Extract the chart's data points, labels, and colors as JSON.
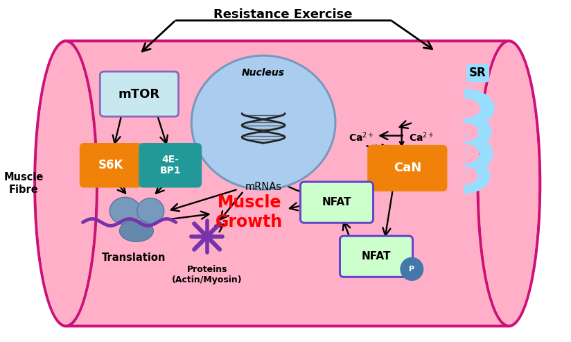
{
  "fig_width": 8.24,
  "fig_height": 4.93,
  "cell_fill": "#FFB0C8",
  "cell_edge": "#CC1177",
  "title_text": "Resistance Exercise",
  "muscle_fibre_label": "Muscle\nFibre",
  "nucleus_label": "Nucleus",
  "nucleus_fill": "#AACCEE",
  "nucleus_edge": "#7799BB",
  "mTOR_label": "mTOR",
  "mTOR_fill": "#C8E8F0",
  "mTOR_edge": "#8866BB",
  "S6K_label": "S6K",
  "S6K_fill": "#F0820A",
  "S6K_edge": "#F0820A",
  "BP1_label": "4E-\nBP1",
  "BP1_fill": "#229999",
  "BP1_edge": "#229999",
  "CaN_label": "CaN",
  "CaN_fill": "#F0820A",
  "CaN_edge": "#F0820A",
  "NFAT1_label": "NFAT",
  "NFAT1_fill": "#CCFFCC",
  "NFAT1_edge": "#6644CC",
  "NFAT2_label": "NFAT",
  "NFAT2_fill": "#CCFFCC",
  "NFAT2_edge": "#6644CC",
  "P_label": "P",
  "P_fill": "#4477AA",
  "muscle_growth_label": "Muscle\nGrowth",
  "translation_label": "Translation",
  "proteins_label": "Proteins\n(Actin/Myosin)",
  "mRNAs_label": "mRNAs",
  "SR_label": "SR",
  "Ca2_left_label": "Ca$^{2+}$",
  "Ca2_right_label": "Ca$^{2+}$",
  "ribosome_color": "#7799BB",
  "mrna_color": "#7733AA",
  "protein_color": "#7733AA",
  "sr_color": "#99DDFF"
}
